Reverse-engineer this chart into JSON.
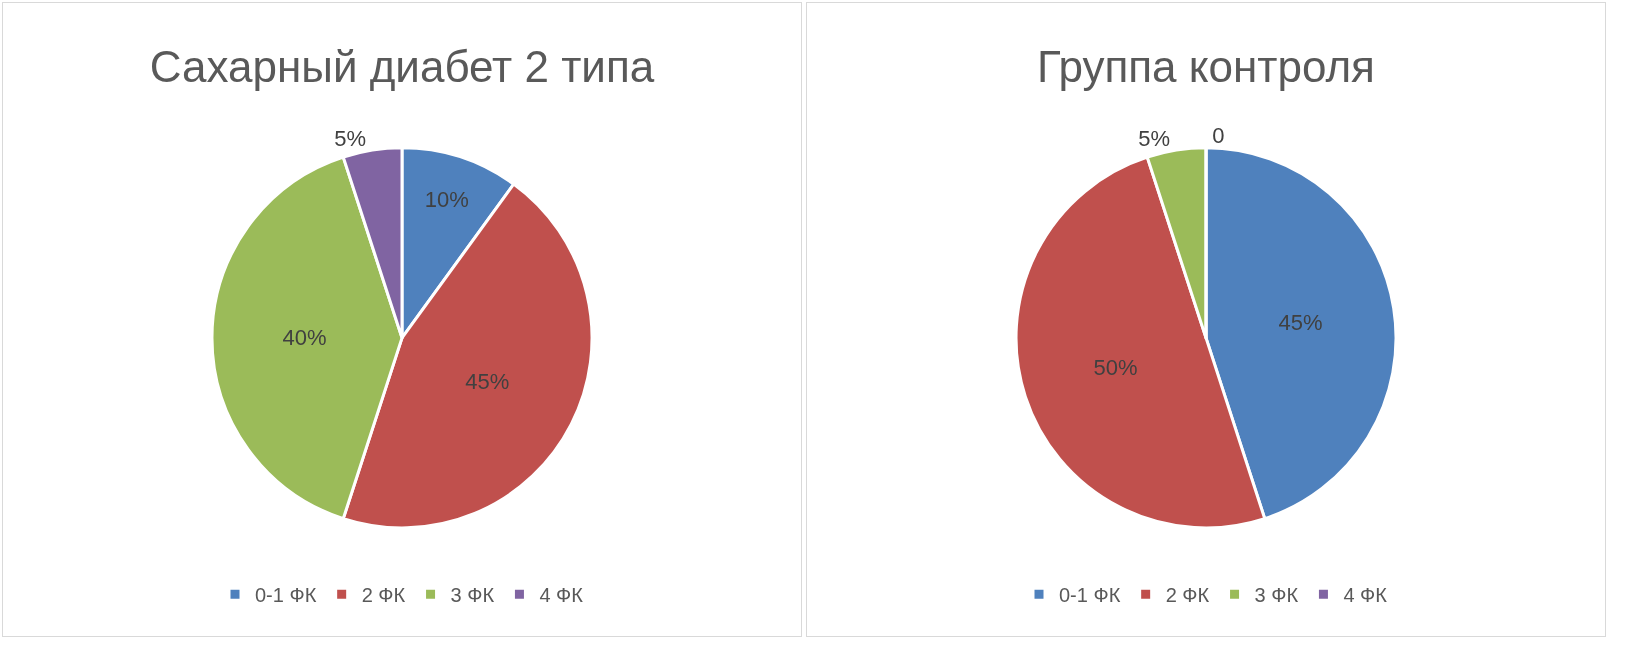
{
  "chart_data": [
    {
      "type": "pie",
      "title": "Сахарный диабет 2 типа",
      "categories": [
        "0-1 ФК",
        "2 ФК",
        "3 ФК",
        "4 ФК"
      ],
      "values": [
        10,
        45,
        40,
        5
      ],
      "value_labels": [
        "10%",
        "45%",
        "40%",
        "5%"
      ],
      "colors": [
        "#4f81bd",
        "#c0504d",
        "#9bbb59",
        "#8064a2"
      ],
      "legend": "bottom"
    },
    {
      "type": "pie",
      "title": "Группа контроля",
      "categories": [
        "0-1 ФК",
        "2 ФК",
        "3 ФК",
        "4 ФК"
      ],
      "values": [
        45,
        50,
        5,
        0
      ],
      "value_labels": [
        "45%",
        "50%",
        "5%",
        "0"
      ],
      "colors": [
        "#4f81bd",
        "#c0504d",
        "#9bbb59",
        "#8064a2"
      ],
      "legend": "bottom"
    }
  ]
}
